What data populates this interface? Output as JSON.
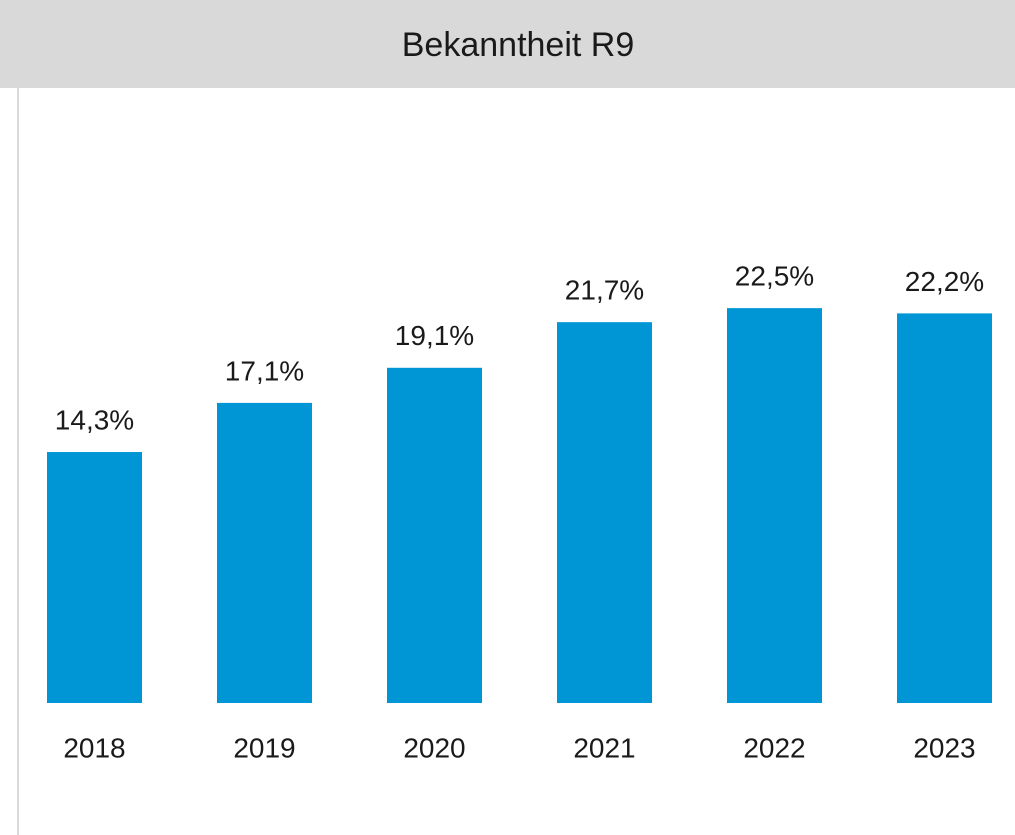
{
  "chart_data": {
    "type": "bar",
    "title": "Bekanntheit R9",
    "categories": [
      "2018",
      "2019",
      "2020",
      "2021",
      "2022",
      "2023"
    ],
    "values": [
      14.3,
      17.1,
      19.1,
      21.7,
      22.5,
      22.2
    ],
    "value_labels": [
      "14,3%",
      "17,1%",
      "19,1%",
      "21,7%",
      "22,5%",
      "22,2%"
    ],
    "color": "#0096d6"
  }
}
